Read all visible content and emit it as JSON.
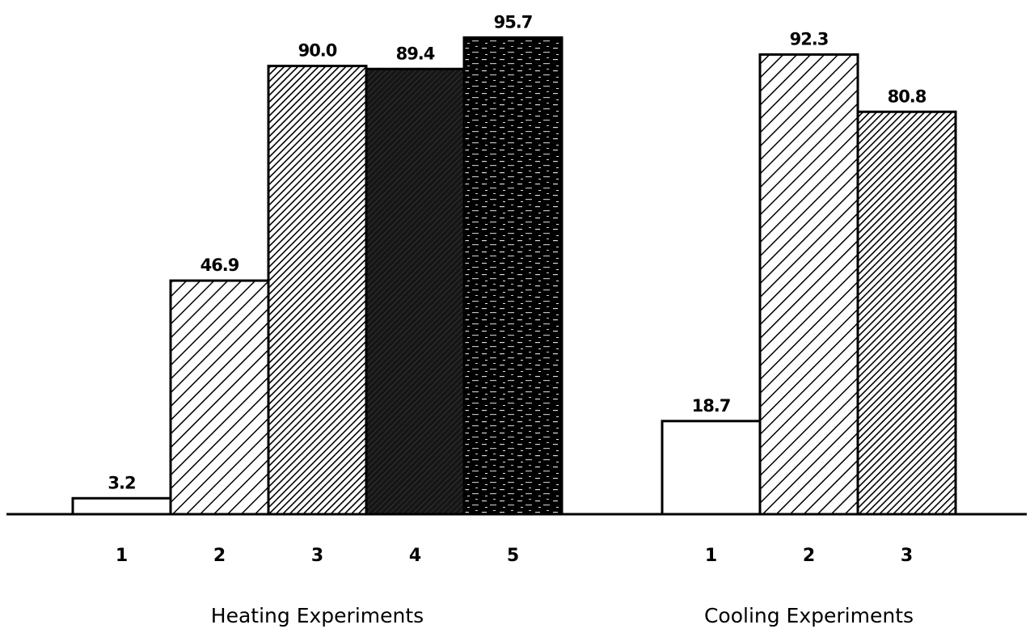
{
  "chart_data": {
    "type": "bar",
    "title": "",
    "xlabel": "",
    "ylabel": "",
    "ylim": [
      0,
      100
    ],
    "grid": false,
    "legend": "none",
    "groups": [
      {
        "label": "Heating Experiments",
        "categories": [
          "1",
          "2",
          "3",
          "4",
          "5"
        ],
        "values": [
          3.2,
          46.9,
          90.0,
          89.4,
          95.7
        ],
        "value_labels": [
          "3.2",
          "46.9",
          "90.0",
          "89.4",
          "95.7"
        ],
        "patterns": [
          "white",
          "hatch-light",
          "hatch-dark",
          "crosshatch-black",
          "speckle-black"
        ]
      },
      {
        "label": "Cooling Experiments",
        "categories": [
          "1",
          "2",
          "3"
        ],
        "values": [
          18.7,
          92.3,
          80.8
        ],
        "value_labels": [
          "18.7",
          "92.3",
          "80.8"
        ],
        "patterns": [
          "white",
          "hatch-light",
          "hatch-dark"
        ]
      }
    ]
  }
}
